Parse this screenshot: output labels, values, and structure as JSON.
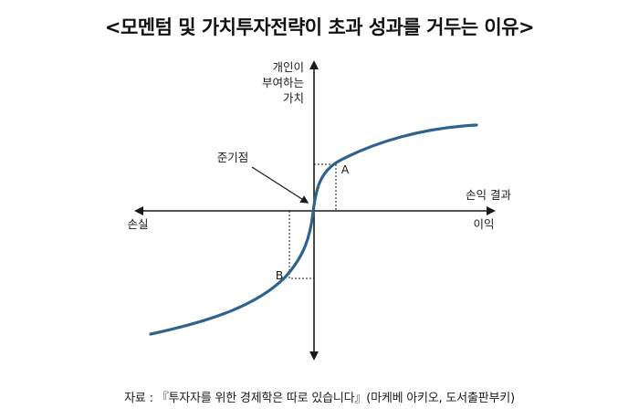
{
  "title": "<모멘텀 및 가치투자전략이 초과 성과를 거두는 이유>",
  "diagram": {
    "y_axis_label_lines": [
      "개인이",
      "부여하는",
      "가치"
    ],
    "x_axis_right_upper_label": "손익 결과",
    "x_axis_right_label": "이익",
    "x_axis_left_label": "손실",
    "reference_point_label": "준기점",
    "point_a_label": "A",
    "point_b_label": "B",
    "curve_color": "#2e6390",
    "axis_color": "#1a1a1a"
  },
  "source": "자료 : 『투자자를 위한 경제학은 따로 있습니다』(마케베 아키오, 도서출판부키)"
}
